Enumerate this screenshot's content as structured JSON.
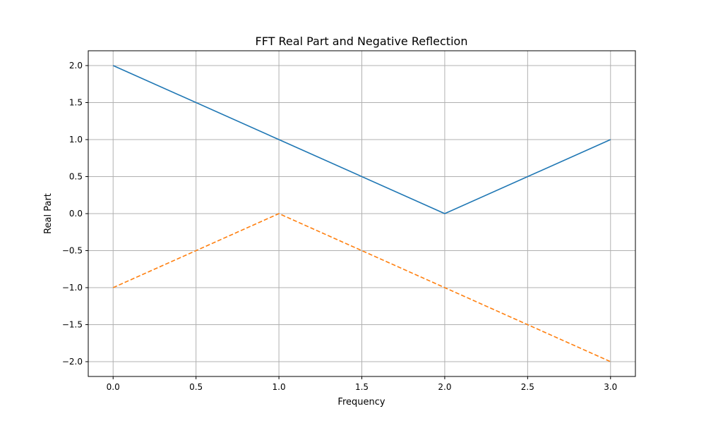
{
  "chart_data": {
    "type": "line",
    "title": "FFT Real Part and Negative Reflection",
    "xlabel": "Frequency",
    "ylabel": "Real Part",
    "xlim": [
      -0.15,
      3.15
    ],
    "ylim": [
      -2.2,
      2.2
    ],
    "xticks": [
      0.0,
      0.5,
      1.0,
      1.5,
      2.0,
      2.5,
      3.0
    ],
    "xtick_labels": [
      "0.0",
      "0.5",
      "1.0",
      "1.5",
      "2.0",
      "2.5",
      "3.0"
    ],
    "yticks": [
      -2.0,
      -1.5,
      -1.0,
      -0.5,
      0.0,
      0.5,
      1.0,
      1.5,
      2.0
    ],
    "ytick_labels": [
      "−2.0",
      "−1.5",
      "−1.0",
      "−0.5",
      "0.0",
      "0.5",
      "1.0",
      "1.5",
      "2.0"
    ],
    "grid": true,
    "x": [
      0,
      1,
      2,
      3
    ],
    "series": [
      {
        "values": [
          2,
          1,
          0,
          1
        ],
        "color": "#1f77b4",
        "style": "solid"
      },
      {
        "values": [
          -1,
          0,
          -1,
          -2
        ],
        "color": "#ff7f0e",
        "style": "dashed"
      }
    ]
  }
}
